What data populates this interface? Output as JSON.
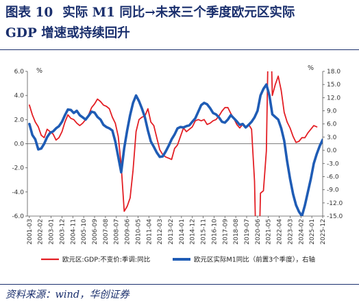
{
  "title": {
    "figure_label": "图表 10",
    "line1": "实际 M1 同比→未来三个季度欧元区实际",
    "line2": "GDP 增速或持续回升"
  },
  "source": "资料来源：wind，华创证券",
  "chart_data": {
    "type": "line",
    "y_left": {
      "unit": "%",
      "ylim": [
        -6,
        6
      ],
      "ticks": [
        "6.0",
        "4.0",
        "2.0",
        "0.0",
        "-2.0",
        "-4.0",
        "-6.0"
      ]
    },
    "y_right": {
      "unit": "%",
      "ylim": [
        -15,
        18
      ],
      "ticks": [
        "18.0",
        "15.0",
        "12.0",
        "9.0",
        "6.0",
        "3.0",
        "0.0",
        "-3.0",
        "-6.0",
        "-9.0",
        "-12.0",
        "-15.0"
      ]
    },
    "x_ticks": [
      "2001-03",
      "2002-02",
      "2003-01",
      "2003-12",
      "2004-11",
      "2005-10",
      "2006-09",
      "2007-08",
      "2008-07",
      "2009-06",
      "2010-05",
      "2011-04",
      "2012-03",
      "2013-02",
      "2014-01",
      "2014-12",
      "2015-11",
      "2016-10",
      "2017-09",
      "2018-08",
      "2019-07",
      "2020-06",
      "2021-05",
      "2022-04",
      "2023-03",
      "2024-02",
      "2025-01",
      "2025-12"
    ],
    "x_range": [
      "2001-01",
      "2025-12"
    ],
    "series": [
      {
        "name": "欧元区:GDP:不变价:季调:同比",
        "axis": "left",
        "color": "#e31e24",
        "points": [
          [
            "2001-03",
            3.2
          ],
          [
            "2001-06",
            2.4
          ],
          [
            "2001-09",
            1.8
          ],
          [
            "2001-12",
            1.4
          ],
          [
            "2002-03",
            0.7
          ],
          [
            "2002-06",
            0.5
          ],
          [
            "2002-09",
            1.2
          ],
          [
            "2002-12",
            1.0
          ],
          [
            "2003-03",
            0.8
          ],
          [
            "2003-06",
            0.3
          ],
          [
            "2003-09",
            0.5
          ],
          [
            "2003-12",
            1.0
          ],
          [
            "2004-03",
            1.8
          ],
          [
            "2004-06",
            2.4
          ],
          [
            "2004-09",
            2.1
          ],
          [
            "2004-12",
            2.0
          ],
          [
            "2005-03",
            1.7
          ],
          [
            "2005-06",
            1.5
          ],
          [
            "2005-09",
            1.7
          ],
          [
            "2005-12",
            2.0
          ],
          [
            "2006-03",
            2.4
          ],
          [
            "2006-06",
            3.0
          ],
          [
            "2006-09",
            3.3
          ],
          [
            "2006-12",
            3.7
          ],
          [
            "2007-03",
            3.5
          ],
          [
            "2007-06",
            3.2
          ],
          [
            "2007-09",
            3.1
          ],
          [
            "2007-12",
            2.9
          ],
          [
            "2008-03",
            2.2
          ],
          [
            "2008-06",
            1.7
          ],
          [
            "2008-09",
            0.6
          ],
          [
            "2008-12",
            -1.8
          ],
          [
            "2009-03",
            -5.6
          ],
          [
            "2009-06",
            -5.2
          ],
          [
            "2009-09",
            -4.5
          ],
          [
            "2009-12",
            -2.2
          ],
          [
            "2010-03",
            1.0
          ],
          [
            "2010-06",
            2.0
          ],
          [
            "2010-09",
            2.2
          ],
          [
            "2010-12",
            2.3
          ],
          [
            "2011-03",
            2.9
          ],
          [
            "2011-06",
            1.8
          ],
          [
            "2011-09",
            1.5
          ],
          [
            "2011-12",
            0.5
          ],
          [
            "2012-03",
            -0.5
          ],
          [
            "2012-06",
            -0.9
          ],
          [
            "2012-09",
            -1.1
          ],
          [
            "2012-12",
            -1.2
          ],
          [
            "2013-03",
            -1.3
          ],
          [
            "2013-06",
            -0.4
          ],
          [
            "2013-09",
            -0.1
          ],
          [
            "2013-12",
            0.6
          ],
          [
            "2014-03",
            1.3
          ],
          [
            "2014-06",
            1.0
          ],
          [
            "2014-09",
            1.2
          ],
          [
            "2014-12",
            1.4
          ],
          [
            "2015-03",
            1.9
          ],
          [
            "2015-06",
            2.0
          ],
          [
            "2015-09",
            1.9
          ],
          [
            "2015-12",
            2.0
          ],
          [
            "2016-03",
            1.6
          ],
          [
            "2016-06",
            1.7
          ],
          [
            "2016-09",
            1.9
          ],
          [
            "2016-12",
            2.0
          ],
          [
            "2017-03",
            2.3
          ],
          [
            "2017-06",
            2.7
          ],
          [
            "2017-09",
            3.0
          ],
          [
            "2017-12",
            3.0
          ],
          [
            "2018-03",
            2.5
          ],
          [
            "2018-06",
            2.1
          ],
          [
            "2018-09",
            1.6
          ],
          [
            "2018-12",
            1.3
          ],
          [
            "2019-03",
            1.6
          ],
          [
            "2019-06",
            1.3
          ],
          [
            "2019-09",
            1.6
          ],
          [
            "2019-12",
            1.2
          ],
          [
            "2020-03",
            -3.1
          ],
          [
            "2020-06",
            -14.5
          ],
          [
            "2020-09",
            -4.1
          ],
          [
            "2020-12",
            -3.9
          ],
          [
            "2021-03",
            -0.6
          ],
          [
            "2021-06",
            14.2
          ],
          [
            "2021-09",
            4.0
          ],
          [
            "2021-12",
            4.9
          ],
          [
            "2022-03",
            5.6
          ],
          [
            "2022-06",
            4.4
          ],
          [
            "2022-09",
            2.6
          ],
          [
            "2022-12",
            1.8
          ],
          [
            "2023-03",
            1.3
          ],
          [
            "2023-06",
            0.6
          ],
          [
            "2023-09",
            0.1
          ],
          [
            "2023-12",
            0.2
          ],
          [
            "2024-03",
            0.5
          ],
          [
            "2024-06",
            0.5
          ],
          [
            "2024-09",
            0.9
          ],
          [
            "2024-12",
            1.2
          ],
          [
            "2025-03",
            1.5
          ],
          [
            "2025-06",
            1.4
          ]
        ]
      },
      {
        "name": "欧元区实际M1同比（前置3个季度），右轴",
        "axis": "right",
        "color": "#1f5cb5",
        "points": [
          [
            "2001-03",
            6.0
          ],
          [
            "2001-06",
            3.5
          ],
          [
            "2001-09",
            2.5
          ],
          [
            "2001-12",
            0.2
          ],
          [
            "2002-03",
            0.4
          ],
          [
            "2002-06",
            1.5
          ],
          [
            "2002-09",
            3.0
          ],
          [
            "2002-12",
            4.0
          ],
          [
            "2003-03",
            4.3
          ],
          [
            "2003-06",
            5.0
          ],
          [
            "2003-09",
            5.5
          ],
          [
            "2003-12",
            6.5
          ],
          [
            "2004-03",
            8.0
          ],
          [
            "2004-06",
            9.3
          ],
          [
            "2004-09",
            9.2
          ],
          [
            "2004-12",
            8.5
          ],
          [
            "2005-03",
            9.0
          ],
          [
            "2005-06",
            8.0
          ],
          [
            "2005-09",
            7.5
          ],
          [
            "2005-12",
            7.0
          ],
          [
            "2006-03",
            7.9
          ],
          [
            "2006-06",
            8.8
          ],
          [
            "2006-09",
            8.6
          ],
          [
            "2006-12",
            7.6
          ],
          [
            "2007-03",
            7.0
          ],
          [
            "2007-06",
            5.8
          ],
          [
            "2007-09",
            5.3
          ],
          [
            "2007-12",
            5.0
          ],
          [
            "2008-03",
            4.5
          ],
          [
            "2008-06",
            2.0
          ],
          [
            "2008-09",
            -1.5
          ],
          [
            "2008-12",
            -5.0
          ],
          [
            "2009-03",
            0.5
          ],
          [
            "2009-06",
            4.5
          ],
          [
            "2009-09",
            8.0
          ],
          [
            "2009-12",
            10.8
          ],
          [
            "2010-03",
            12.5
          ],
          [
            "2010-06",
            11.2
          ],
          [
            "2010-09",
            9.5
          ],
          [
            "2010-12",
            7.5
          ],
          [
            "2011-03",
            4.5
          ],
          [
            "2011-06",
            2.0
          ],
          [
            "2011-09",
            0.8
          ],
          [
            "2011-12",
            -0.5
          ],
          [
            "2012-03",
            -1.5
          ],
          [
            "2012-06",
            -1.4
          ],
          [
            "2012-09",
            -0.3
          ],
          [
            "2012-12",
            1.0
          ],
          [
            "2013-03",
            2.5
          ],
          [
            "2013-06",
            3.6
          ],
          [
            "2013-09",
            5.0
          ],
          [
            "2013-12",
            5.3
          ],
          [
            "2014-03",
            5.2
          ],
          [
            "2014-06",
            5.5
          ],
          [
            "2014-09",
            5.7
          ],
          [
            "2014-12",
            6.5
          ],
          [
            "2015-03",
            7.3
          ],
          [
            "2015-06",
            8.8
          ],
          [
            "2015-09",
            10.3
          ],
          [
            "2015-12",
            10.8
          ],
          [
            "2016-03",
            10.5
          ],
          [
            "2016-06",
            9.6
          ],
          [
            "2016-09",
            8.5
          ],
          [
            "2016-12",
            8.2
          ],
          [
            "2017-03",
            7.5
          ],
          [
            "2017-06",
            6.5
          ],
          [
            "2017-09",
            6.3
          ],
          [
            "2017-12",
            7.0
          ],
          [
            "2018-03",
            8.0
          ],
          [
            "2018-06",
            7.3
          ],
          [
            "2018-09",
            6.6
          ],
          [
            "2018-12",
            5.8
          ],
          [
            "2019-03",
            6.0
          ],
          [
            "2019-06",
            5.2
          ],
          [
            "2019-09",
            5.8
          ],
          [
            "2019-12",
            6.5
          ],
          [
            "2020-03",
            7.5
          ],
          [
            "2020-06",
            9.0
          ],
          [
            "2020-09",
            12.5
          ],
          [
            "2020-12",
            14.0
          ],
          [
            "2021-03",
            15.0
          ],
          [
            "2021-06",
            12.5
          ],
          [
            "2021-09",
            8.2
          ],
          [
            "2021-12",
            7.6
          ],
          [
            "2022-03",
            7.0
          ],
          [
            "2022-06",
            5.0
          ],
          [
            "2022-09",
            2.2
          ],
          [
            "2022-12",
            -2.5
          ],
          [
            "2023-03",
            -6.5
          ],
          [
            "2023-06",
            -10.0
          ],
          [
            "2023-09",
            -12.5
          ],
          [
            "2023-12",
            -14.0
          ],
          [
            "2024-03",
            -15.0
          ],
          [
            "2024-06",
            -12.5
          ],
          [
            "2024-09",
            -9.5
          ],
          [
            "2024-12",
            -6.5
          ],
          [
            "2025-03",
            -3.0
          ],
          [
            "2025-06",
            -0.8
          ],
          [
            "2025-09",
            1.0
          ],
          [
            "2025-12",
            2.4
          ]
        ]
      }
    ],
    "legend": {
      "placement": "bottom"
    },
    "grid": false
  }
}
